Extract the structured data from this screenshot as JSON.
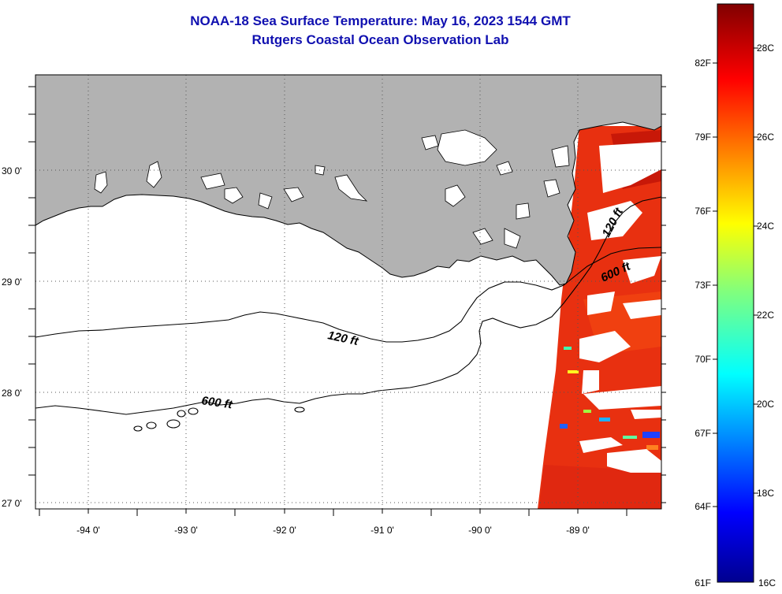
{
  "header": {
    "title": "NOAA-18 Sea Surface Temperature:  May 16, 2023 1544 GMT",
    "subtitle": "Rutgers Coastal Ocean Observation Lab"
  },
  "map": {
    "lat_labels": [
      "30 0'",
      "29 0'",
      "28 0'",
      "27 0'"
    ],
    "lon_labels": [
      "-94 0'",
      "-93 0'",
      "-92 0'",
      "-91 0'",
      "-90 0'",
      "-89 0'"
    ],
    "isobaths": [
      "120 ft",
      "600 ft",
      "120 ft",
      "600 ft"
    ],
    "land_color": "#b2b2b2",
    "cloud_color": "#ffffff"
  },
  "colorbar": {
    "fahrenheit": [
      "82F",
      "79F",
      "76F",
      "73F",
      "70F",
      "67F",
      "64F",
      "61F"
    ],
    "celsius": [
      "28C",
      "26C",
      "24C",
      "22C",
      "20C",
      "18C",
      "16C"
    ]
  }
}
